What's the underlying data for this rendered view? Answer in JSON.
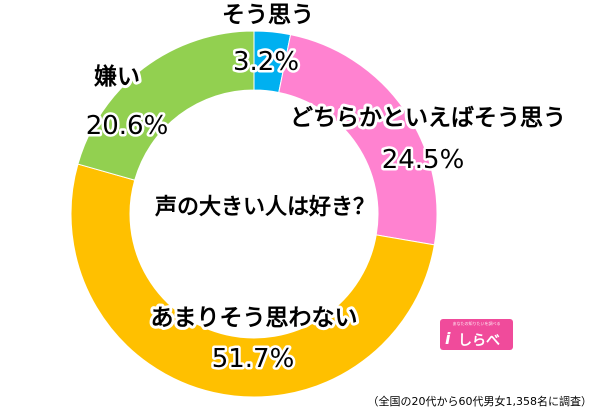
{
  "chart_data": {
    "type": "pie",
    "style": "donut",
    "title": "声の大きい人は好き？",
    "slices": [
      {
        "label": "そう思う",
        "value": 3.2,
        "display": "3.2%",
        "color": "#00b0f0"
      },
      {
        "label": "どちらかといえばそう思う",
        "value": 24.5,
        "display": "24.5%",
        "color": "#ff82d0"
      },
      {
        "label": "あまりそう思わない",
        "value": 51.7,
        "display": "51.7%",
        "color": "#ffc000"
      },
      {
        "label": "嫌い",
        "value": 20.6,
        "display": "20.6%",
        "color": "#92d050"
      }
    ]
  },
  "footnote": "（全国の20代から60代男女1,358名に調査）",
  "logo": {
    "tagline": "あなたの知りたいを調べる",
    "text": "しらべぇ",
    "color": "#f04b9b"
  }
}
